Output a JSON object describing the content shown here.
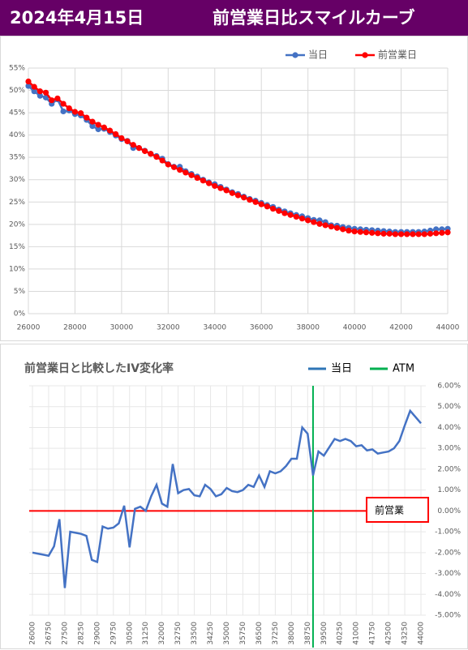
{
  "header": {
    "date": "2024年4月15日",
    "title": "前営業日比スマイルカーブ"
  },
  "chart_data": [
    {
      "type": "line",
      "x": [
        26000,
        26250,
        26500,
        26750,
        27000,
        27250,
        27500,
        27750,
        28000,
        28250,
        28500,
        28750,
        29000,
        29250,
        29500,
        29750,
        30000,
        30250,
        30500,
        30750,
        31000,
        31250,
        31500,
        31750,
        32000,
        32250,
        32500,
        32750,
        33000,
        33250,
        33500,
        33750,
        34000,
        34250,
        34500,
        34750,
        35000,
        35250,
        35500,
        35750,
        36000,
        36250,
        36500,
        36750,
        37000,
        37250,
        37500,
        37750,
        38000,
        38250,
        38500,
        38750,
        39000,
        39250,
        39500,
        39750,
        40000,
        40250,
        40500,
        40750,
        41000,
        41250,
        41500,
        41750,
        42000,
        42250,
        42500,
        42750,
        43000,
        43250,
        43500,
        43750,
        44000
      ],
      "series": [
        {
          "name": "当日",
          "color": "#4472c4",
          "values": [
            51.0,
            49.8,
            48.8,
            48.4,
            47.0,
            48.0,
            45.3,
            45.5,
            44.7,
            44.4,
            43.4,
            42.0,
            41.3,
            41.4,
            40.7,
            39.9,
            39.1,
            38.7,
            37.1,
            37.1,
            36.5,
            35.8,
            35.3,
            34.7,
            33.5,
            32.9,
            32.9,
            31.9,
            31.3,
            30.7,
            30.0,
            29.4,
            29.0,
            28.4,
            27.8,
            27.2,
            26.8,
            26.2,
            25.7,
            25.3,
            24.8,
            24.3,
            23.9,
            23.3,
            22.9,
            22.5,
            22.1,
            21.8,
            21.4,
            21.0,
            20.9,
            20.5,
            19.8,
            19.7,
            19.4,
            19.2,
            19.0,
            18.9,
            18.8,
            18.7,
            18.6,
            18.5,
            18.4,
            18.3,
            18.3,
            18.3,
            18.3,
            18.3,
            18.4,
            18.6,
            18.9,
            18.9,
            19.0
          ]
        },
        {
          "name": "前営業日",
          "color": "#ff0000",
          "values": [
            52.0,
            50.8,
            49.8,
            49.5,
            47.8,
            48.2,
            47.0,
            46.0,
            45.2,
            44.9,
            43.9,
            43.0,
            42.3,
            41.7,
            41.0,
            40.2,
            39.3,
            38.6,
            37.8,
            37.1,
            36.4,
            35.8,
            35.1,
            34.3,
            33.4,
            32.8,
            32.2,
            31.6,
            31.0,
            30.4,
            29.8,
            29.2,
            28.6,
            28.1,
            27.6,
            27.0,
            26.5,
            26.0,
            25.5,
            25.0,
            24.5,
            24.0,
            23.5,
            23.0,
            22.5,
            22.1,
            21.7,
            21.3,
            20.9,
            20.5,
            20.1,
            19.8,
            19.5,
            19.2,
            18.9,
            18.6,
            18.4,
            18.3,
            18.2,
            18.1,
            18.0,
            17.9,
            17.9,
            17.8,
            17.8,
            17.8,
            17.8,
            17.8,
            17.8,
            17.9,
            18.0,
            18.1,
            18.2
          ]
        }
      ],
      "xlim": [
        26000,
        44000
      ],
      "xticks": [
        26000,
        28000,
        30000,
        32000,
        34000,
        36000,
        38000,
        40000,
        42000,
        44000
      ],
      "ylim": [
        0,
        55
      ],
      "yticks": [
        {
          "value": 0,
          "label": "0%"
        },
        {
          "value": 5,
          "label": "5%"
        },
        {
          "value": 10,
          "label": "10%"
        },
        {
          "value": 15,
          "label": "15%"
        },
        {
          "value": 20,
          "label": "20%"
        },
        {
          "value": 25,
          "label": "25%"
        },
        {
          "value": 30,
          "label": "30%"
        },
        {
          "value": 35,
          "label": "35%"
        },
        {
          "value": 40,
          "label": "40%"
        },
        {
          "value": 45,
          "label": "45%"
        },
        {
          "value": 50,
          "label": "50%"
        },
        {
          "value": 55,
          "label": "55%"
        }
      ],
      "grid": true,
      "legend": "top-right"
    },
    {
      "type": "line",
      "title": "前営業日と比較したIV変化率",
      "categories": [
        26000,
        null,
        null,
        26750,
        null,
        null,
        27500,
        null,
        null,
        28250,
        null,
        null,
        29000,
        null,
        null,
        29750,
        null,
        null,
        30500,
        null,
        null,
        31250,
        null,
        null,
        32000,
        null,
        null,
        32750,
        null,
        null,
        33500,
        null,
        null,
        34250,
        null,
        null,
        35000,
        null,
        null,
        35750,
        null,
        null,
        36500,
        null,
        null,
        37250,
        null,
        null,
        38000,
        null,
        null,
        38750,
        null,
        null,
        39500,
        null,
        null,
        40250,
        null,
        null,
        41000,
        null,
        null,
        41750,
        null,
        null,
        42500,
        null,
        null,
        43250,
        null,
        null,
        44000
      ],
      "series": [
        {
          "name": "当日",
          "color": "#4472c4",
          "legend_color": "#2e75b6",
          "values": [
            -2.0,
            -2.05,
            -2.1,
            -2.15,
            -1.7,
            -0.4,
            -3.7,
            -1.0,
            -1.05,
            -1.1,
            -1.2,
            -2.35,
            -2.45,
            -0.75,
            -0.85,
            -0.8,
            -0.6,
            0.25,
            -1.75,
            0.1,
            0.2,
            0.0,
            0.7,
            1.25,
            0.35,
            0.2,
            2.25,
            0.85,
            1.0,
            1.05,
            0.75,
            0.7,
            1.25,
            1.05,
            0.7,
            0.8,
            1.1,
            0.95,
            0.9,
            1.0,
            1.25,
            1.15,
            1.7,
            1.15,
            1.9,
            1.8,
            1.9,
            2.15,
            2.5,
            2.5,
            4.0,
            3.7,
            1.7,
            2.85,
            2.65,
            3.05,
            3.45,
            3.35,
            3.45,
            3.35,
            3.1,
            3.15,
            2.9,
            2.95,
            2.75,
            2.8,
            2.85,
            3.0,
            3.35,
            4.1,
            4.8,
            4.5,
            4.2
          ]
        }
      ],
      "atm": {
        "name": "ATM",
        "color": "#00b050",
        "x": 39000
      },
      "reference": {
        "label": "前営業",
        "value": 0,
        "color": "#ff0000"
      },
      "ylim": [
        -5,
        6
      ],
      "yticks": [
        {
          "value": -5,
          "label": "-5.00%"
        },
        {
          "value": -4,
          "label": "-4.00%"
        },
        {
          "value": -3,
          "label": "-3.00%"
        },
        {
          "value": -2,
          "label": "-2.00%"
        },
        {
          "value": -1,
          "label": "-1.00%"
        },
        {
          "value": 0,
          "label": "0.00%"
        },
        {
          "value": 1,
          "label": "1.00%"
        },
        {
          "value": 2,
          "label": "2.00%"
        },
        {
          "value": 3,
          "label": "3.00%"
        },
        {
          "value": 4,
          "label": "4.00%"
        },
        {
          "value": 5,
          "label": "5.00%"
        },
        {
          "value": 6,
          "label": "6.00%"
        }
      ],
      "grid": true,
      "legend": "top-right"
    }
  ]
}
